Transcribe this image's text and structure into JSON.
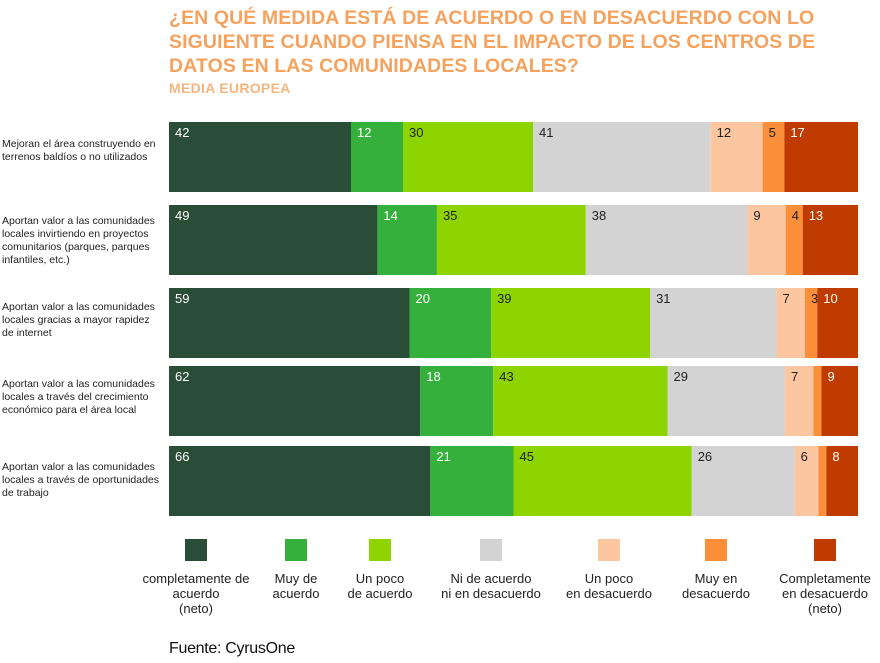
{
  "title": "¿EN QUÉ MEDIDA ESTÁ DE ACUERDO O EN DESACUERDO CON LO SIGUIENTE CUANDO PIENSA EN EL IMPACTO DE LOS CENTROS DE DATOS EN LAS COMUNIDADES LOCALES?",
  "subtitle": "MEDIA EUROPEA",
  "source": "Fuente: CyrusOne",
  "chart_data": {
    "type": "bar",
    "orientation": "horizontal",
    "stacked": true,
    "normalized": true,
    "categories": [
      "Mejoran el área construyendo en terrenos baldíos o no utilizados",
      "Aportan valor a las comunidades locales invirtiendo en proyectos comunitarios (parques, parques infantiles, etc.)",
      "Aportan valor a las comunidades locales gracias a mayor rapidez de internet",
      "Aportan valor a las comunidades locales a través del crecimiento económico para el área local",
      "Aportan valor a las comunidades locales a través de oportunidades de trabajo"
    ],
    "series": [
      {
        "name": "completamente de acuerdo (neto)",
        "color": "#2A4D37",
        "label_color": "#ffffff",
        "values": [
          42,
          49,
          59,
          62,
          66
        ]
      },
      {
        "name": "Muy de acuerdo",
        "color": "#35B03C",
        "label_color": "#ffffff",
        "values": [
          12,
          14,
          20,
          18,
          21
        ]
      },
      {
        "name": "Un poco de acuerdo",
        "color": "#8ED400",
        "label_color": "#222222",
        "values": [
          30,
          35,
          39,
          43,
          45
        ]
      },
      {
        "name": "Ni de acuerdo ni en desacuerdo",
        "color": "#D3D3D3",
        "label_color": "#222222",
        "values": [
          41,
          38,
          31,
          29,
          26
        ]
      },
      {
        "name": "Un poco en desacuerdo",
        "color": "#FCC7A0",
        "label_color": "#222222",
        "values": [
          12,
          9,
          7,
          7,
          6
        ]
      },
      {
        "name": "Muy en desacuerdo",
        "color": "#FC8F3A",
        "label_color": "#222222",
        "values": [
          5,
          4,
          3,
          null,
          null
        ]
      },
      {
        "name": "Completamente en desacuerdo (neto)",
        "color": "#BF3B00",
        "label_color": "#ffffff",
        "values": [
          17,
          13,
          10,
          9,
          8
        ]
      }
    ],
    "shown_values": [
      [
        42,
        12,
        30,
        41,
        12,
        5,
        17
      ],
      [
        49,
        14,
        35,
        38,
        9,
        4,
        13
      ],
      [
        59,
        20,
        39,
        31,
        7,
        3,
        10
      ],
      [
        62,
        18,
        43,
        29,
        7,
        null,
        9
      ],
      [
        66,
        21,
        45,
        26,
        6,
        null,
        8
      ]
    ],
    "hidden_segment_values": [
      [
        null,
        null,
        null,
        null,
        null,
        null,
        null
      ],
      [
        null,
        null,
        null,
        null,
        null,
        null,
        null
      ],
      [
        null,
        null,
        null,
        null,
        null,
        null,
        null
      ],
      [
        null,
        null,
        null,
        null,
        null,
        2,
        null
      ],
      [
        null,
        null,
        null,
        null,
        null,
        2,
        null
      ]
    ],
    "legend_position": "bottom",
    "grid": false
  },
  "legend": [
    {
      "label": "completamente de\nacuerdo\n(neto)"
    },
    {
      "label": "Muy de\nacuerdo"
    },
    {
      "label": "Un poco\nde acuerdo"
    },
    {
      "label": "Ni de acuerdo\nni en desacuerdo"
    },
    {
      "label": "Un poco\nen desacuerdo"
    },
    {
      "label": "Muy en\ndesacuerdo"
    },
    {
      "label": "Completamente\nen desacuerdo\n(neto)"
    }
  ]
}
